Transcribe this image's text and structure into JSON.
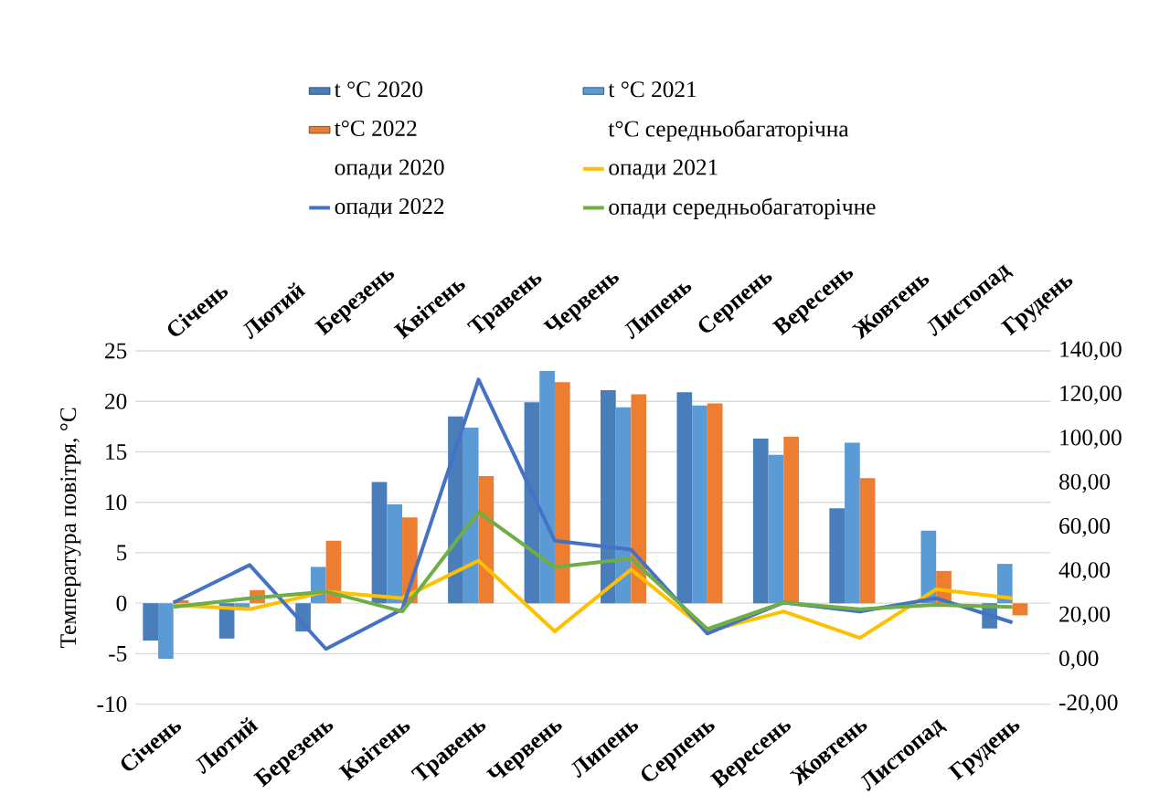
{
  "chart_data": {
    "type": "bar",
    "ylabel": "Температура повітря, °C",
    "categories": [
      "Січень",
      "Лютий",
      "Березень",
      "Квітень",
      "Травень",
      "Червень",
      "Липень",
      "Серпень",
      "Вересень",
      "Жовтень",
      "Листопад",
      "Грудень"
    ],
    "series": [
      {
        "name": "t °C 2020",
        "color": "#4a7ebb",
        "values": [
          -3.7,
          -3.5,
          -2.8,
          12.0,
          18.5,
          19.9,
          21.1,
          20.9,
          16.3,
          9.4,
          null,
          -2.5
        ]
      },
      {
        "name": "t °C 2021",
        "color": "#5b9bd5",
        "values": [
          -5.5,
          -0.5,
          3.6,
          9.8,
          17.4,
          23.0,
          19.4,
          19.6,
          14.7,
          15.9,
          7.2,
          3.9
        ]
      },
      {
        "name": "t°C 2022",
        "color": "#ed7d31",
        "values": [
          0.3,
          1.3,
          6.2,
          8.5,
          12.6,
          21.9,
          20.7,
          19.8,
          16.5,
          12.4,
          3.2,
          -1.2
        ]
      },
      {
        "name": "t°C середньобагаторічна",
        "values": [
          null,
          null,
          null,
          null,
          null,
          null,
          null,
          null,
          null,
          null,
          null,
          null
        ]
      },
      {
        "name": "опади 2020",
        "type": "line",
        "axis": "y2",
        "values": [
          null,
          null,
          null,
          null,
          null,
          null,
          null,
          null,
          null,
          null,
          null,
          null
        ]
      },
      {
        "name": "опади 2021",
        "type": "line",
        "axis": "y2",
        "color": "#ffc000",
        "values": [
          25,
          23,
          31,
          28,
          45,
          13,
          41,
          13,
          22,
          10,
          32,
          28
        ]
      },
      {
        "name": "опади 2022",
        "type": "line",
        "axis": "y2",
        "color": "#4472c4",
        "values": [
          26,
          43,
          5,
          23,
          127,
          54,
          50,
          12,
          26,
          22,
          28,
          17
        ]
      },
      {
        "name": "опади середньобагаторічне",
        "type": "line",
        "axis": "y2",
        "color": "#70ad47",
        "values": [
          24,
          28,
          31,
          22,
          67,
          42,
          46,
          14,
          26,
          23,
          25,
          24
        ]
      }
    ],
    "ylim": [
      -10,
      25
    ],
    "yticks": [
      -10,
      -5,
      0,
      5,
      10,
      15,
      20,
      25
    ],
    "y2lim": [
      -20,
      140
    ],
    "y2ticks": [
      {
        "value": -20,
        "label": "-20,00"
      },
      {
        "value": 0,
        "label": "0,00"
      },
      {
        "value": 20,
        "label": "20,00"
      },
      {
        "value": 40,
        "label": "40,00"
      },
      {
        "value": 60,
        "label": "60,00"
      },
      {
        "value": 80,
        "label": "80,00"
      },
      {
        "value": 100,
        "label": "100,00"
      },
      {
        "value": 120,
        "label": "120,00"
      },
      {
        "value": 140,
        "label": "140,00"
      }
    ],
    "grid": "y",
    "legend": "top"
  }
}
